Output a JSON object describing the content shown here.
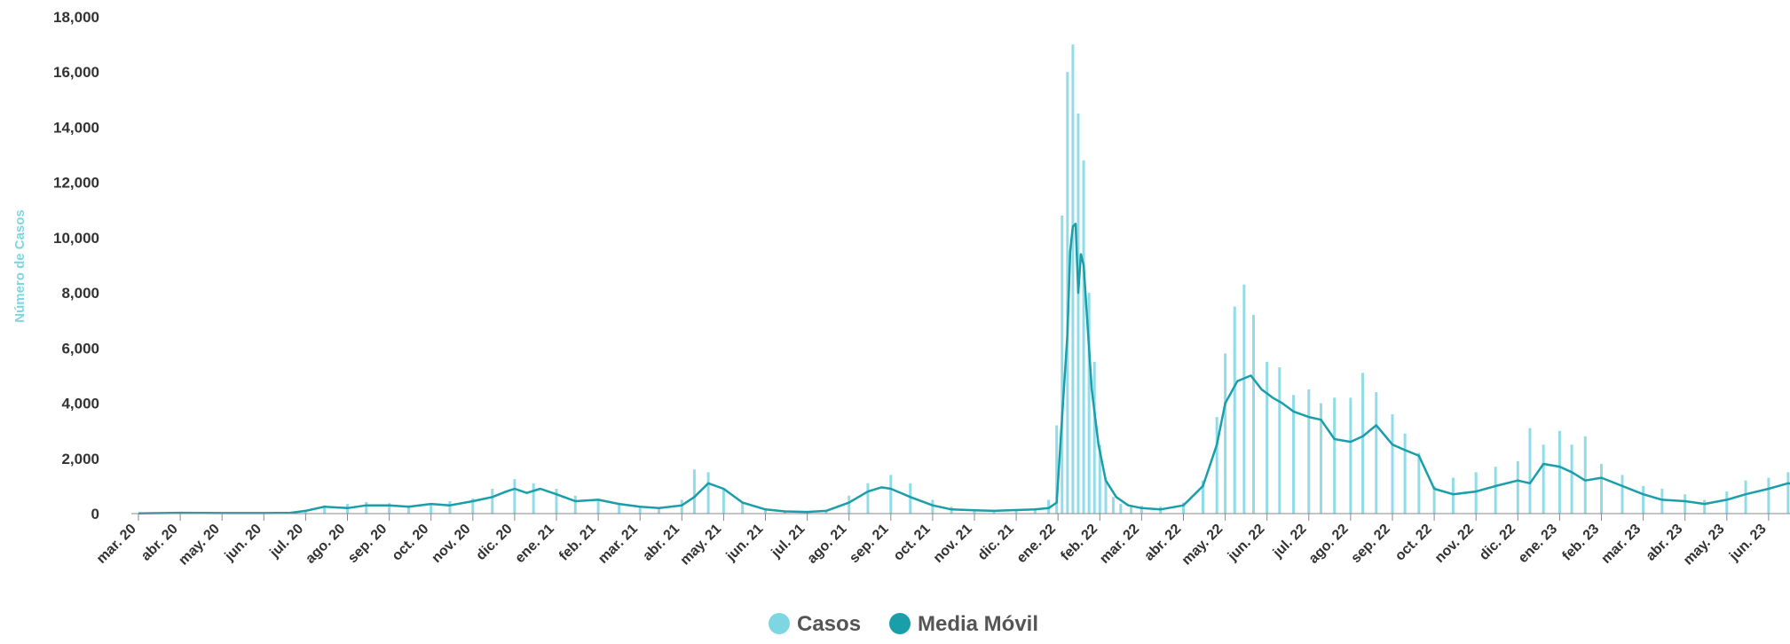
{
  "chart_data": {
    "type": "bar+line",
    "title": "",
    "ylabel": "Número de Casos",
    "xlabel": "",
    "ylim": [
      0,
      18000
    ],
    "yticks": [
      0,
      2000,
      4000,
      6000,
      8000,
      10000,
      12000,
      14000,
      16000,
      18000
    ],
    "ytick_labels": [
      "0",
      "2,000",
      "4,000",
      "6,000",
      "8,000",
      "10,000",
      "12,000",
      "14,000",
      "16,000",
      "18,000"
    ],
    "x_start": "2020-03-01",
    "x_end": "2023-06-30",
    "categories": [
      "mar. 20",
      "abr. 20",
      "may. 20",
      "jun. 20",
      "jul. 20",
      "ago. 20",
      "sep. 20",
      "oct. 20",
      "nov. 20",
      "dic. 20",
      "ene. 21",
      "feb. 21",
      "mar. 21",
      "abr. 21",
      "may. 21",
      "jun. 21",
      "jul. 21",
      "ago. 21",
      "sep. 21",
      "oct. 21",
      "nov. 21",
      "dic. 21",
      "ene. 22",
      "feb. 22",
      "mar. 22",
      "abr. 22",
      "may. 22",
      "jun. 22",
      "jul. 22",
      "ago. 22",
      "sep. 22",
      "oct. 22",
      "nov. 22",
      "dic. 22",
      "ene. 23",
      "feb. 23",
      "mar. 23",
      "abr. 23",
      "may. 23",
      "jun. 23"
    ],
    "legend": {
      "position": "bottom-center"
    },
    "grid": false,
    "series": [
      {
        "name": "Casos",
        "type": "bar",
        "color": "#7fd6e3",
        "x": [
          "2020-03-15",
          "2020-04-01",
          "2020-04-15",
          "2020-05-15",
          "2020-06-15",
          "2020-07-01",
          "2020-07-15",
          "2020-08-01",
          "2020-08-15",
          "2020-09-01",
          "2020-09-15",
          "2020-10-01",
          "2020-10-15",
          "2020-11-01",
          "2020-11-15",
          "2020-12-01",
          "2020-12-15",
          "2021-01-01",
          "2021-01-15",
          "2021-02-01",
          "2021-02-15",
          "2021-03-01",
          "2021-03-15",
          "2021-04-01",
          "2021-04-10",
          "2021-04-20",
          "2021-05-01",
          "2021-05-15",
          "2021-06-01",
          "2021-06-15",
          "2021-07-01",
          "2021-07-15",
          "2021-08-01",
          "2021-08-15",
          "2021-09-01",
          "2021-09-15",
          "2021-10-01",
          "2021-10-15",
          "2021-11-01",
          "2021-11-15",
          "2021-12-01",
          "2021-12-15",
          "2021-12-25",
          "2021-12-31",
          "2022-01-04",
          "2022-01-08",
          "2022-01-12",
          "2022-01-16",
          "2022-01-20",
          "2022-01-24",
          "2022-01-28",
          "2022-02-01",
          "2022-02-05",
          "2022-02-10",
          "2022-02-15",
          "2022-02-22",
          "2022-03-01",
          "2022-03-15",
          "2022-04-01",
          "2022-04-15",
          "2022-04-25",
          "2022-05-01",
          "2022-05-08",
          "2022-05-15",
          "2022-05-22",
          "2022-06-01",
          "2022-06-10",
          "2022-06-20",
          "2022-07-01",
          "2022-07-10",
          "2022-07-20",
          "2022-08-01",
          "2022-08-10",
          "2022-08-20",
          "2022-09-01",
          "2022-09-10",
          "2022-09-20",
          "2022-10-01",
          "2022-10-15",
          "2022-11-01",
          "2022-11-15",
          "2022-12-01",
          "2022-12-10",
          "2022-12-20",
          "2023-01-01",
          "2023-01-10",
          "2023-01-20",
          "2023-02-01",
          "2023-02-15",
          "2023-03-01",
          "2023-03-15",
          "2023-04-01",
          "2023-04-15",
          "2023-05-01",
          "2023-05-15",
          "2023-06-01",
          "2023-06-15",
          "2023-06-28"
        ],
        "values": [
          20,
          50,
          40,
          30,
          30,
          60,
          300,
          350,
          420,
          380,
          300,
          350,
          450,
          550,
          900,
          1250,
          1100,
          900,
          650,
          500,
          350,
          250,
          220,
          500,
          1600,
          1500,
          900,
          400,
          150,
          80,
          60,
          120,
          650,
          1100,
          1400,
          1100,
          500,
          250,
          150,
          120,
          150,
          200,
          500,
          3200,
          10800,
          16000,
          17000,
          14500,
          12800,
          8000,
          5500,
          2500,
          1200,
          600,
          350,
          300,
          280,
          250,
          400,
          1200,
          3500,
          5800,
          7500,
          8300,
          7200,
          5500,
          5300,
          4300,
          4500,
          4000,
          4200,
          4200,
          5100,
          4400,
          3600,
          2900,
          2200,
          1000,
          1300,
          1500,
          1700,
          1900,
          3100,
          2500,
          3000,
          2500,
          2800,
          1800,
          1400,
          1000,
          900,
          700,
          500,
          800,
          1200,
          1300,
          1500,
          1600
        ]
      },
      {
        "name": "Media Móvil",
        "type": "line",
        "color": "#1a9eaa",
        "x": [
          "2020-03-01",
          "2020-04-01",
          "2020-05-01",
          "2020-06-01",
          "2020-06-20",
          "2020-07-01",
          "2020-07-15",
          "2020-08-01",
          "2020-08-15",
          "2020-09-01",
          "2020-09-15",
          "2020-10-01",
          "2020-10-15",
          "2020-11-01",
          "2020-11-15",
          "2020-11-25",
          "2020-12-01",
          "2020-12-10",
          "2020-12-20",
          "2021-01-01",
          "2021-01-15",
          "2021-02-01",
          "2021-02-15",
          "2021-03-01",
          "2021-03-15",
          "2021-04-01",
          "2021-04-10",
          "2021-04-20",
          "2021-05-01",
          "2021-05-15",
          "2021-06-01",
          "2021-06-15",
          "2021-07-01",
          "2021-07-15",
          "2021-08-01",
          "2021-08-15",
          "2021-08-25",
          "2021-09-01",
          "2021-09-15",
          "2021-10-01",
          "2021-10-15",
          "2021-11-01",
          "2021-11-15",
          "2021-12-01",
          "2021-12-15",
          "2021-12-25",
          "2021-12-31",
          "2022-01-04",
          "2022-01-08",
          "2022-01-10",
          "2022-01-12",
          "2022-01-14",
          "2022-01-16",
          "2022-01-18",
          "2022-01-20",
          "2022-01-22",
          "2022-01-26",
          "2022-01-31",
          "2022-02-05",
          "2022-02-12",
          "2022-02-20",
          "2022-03-01",
          "2022-03-15",
          "2022-04-01",
          "2022-04-15",
          "2022-04-25",
          "2022-05-01",
          "2022-05-10",
          "2022-05-20",
          "2022-05-28",
          "2022-06-05",
          "2022-06-12",
          "2022-06-20",
          "2022-07-01",
          "2022-07-10",
          "2022-07-20",
          "2022-08-01",
          "2022-08-10",
          "2022-08-20",
          "2022-09-01",
          "2022-09-10",
          "2022-09-20",
          "2022-10-01",
          "2022-10-15",
          "2022-11-01",
          "2022-11-15",
          "2022-12-01",
          "2022-12-10",
          "2022-12-20",
          "2023-01-01",
          "2023-01-10",
          "2023-01-20",
          "2023-02-01",
          "2023-02-15",
          "2023-03-01",
          "2023-03-15",
          "2023-04-01",
          "2023-04-15",
          "2023-05-01",
          "2023-05-15",
          "2023-06-01",
          "2023-06-15",
          "2023-06-30"
        ],
        "values": [
          10,
          30,
          20,
          20,
          30,
          100,
          250,
          200,
          300,
          300,
          250,
          350,
          300,
          450,
          600,
          800,
          900,
          750,
          900,
          700,
          450,
          500,
          350,
          250,
          200,
          300,
          600,
          1100,
          900,
          400,
          150,
          80,
          60,
          100,
          400,
          800,
          950,
          900,
          600,
          300,
          150,
          120,
          100,
          130,
          150,
          200,
          400,
          3500,
          6500,
          9500,
          10400,
          10500,
          8000,
          9400,
          9000,
          7500,
          4500,
          2500,
          1200,
          600,
          300,
          200,
          150,
          300,
          1000,
          2500,
          4000,
          4800,
          5000,
          4500,
          4200,
          4000,
          3700,
          3500,
          3400,
          2700,
          2600,
          2800,
          3200,
          2500,
          2300,
          2100,
          900,
          700,
          800,
          1000,
          1200,
          1100,
          1800,
          1700,
          1500,
          1200,
          1300,
          1000,
          700,
          500,
          450,
          350,
          500,
          700,
          900,
          1100,
          1000
        ]
      }
    ]
  }
}
